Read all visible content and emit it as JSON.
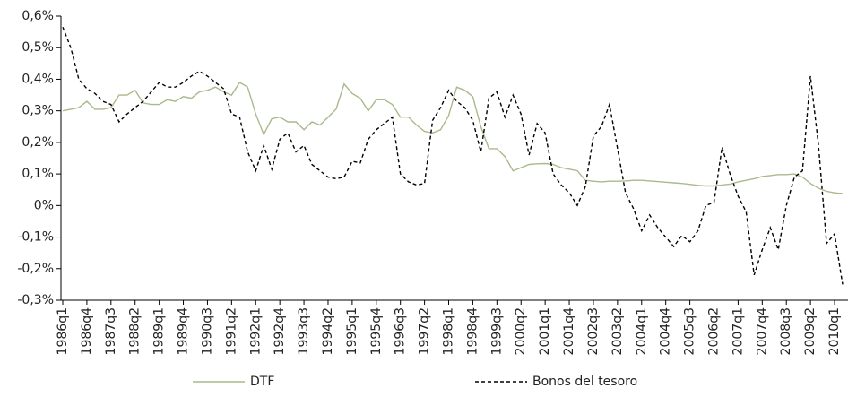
{
  "chart_data": {
    "type": "line",
    "categories": [
      "1986q1",
      null,
      null,
      "1986q4",
      null,
      null,
      "1987q3",
      null,
      null,
      "1988q2",
      null,
      null,
      "1989q1",
      null,
      null,
      "1989q4",
      null,
      null,
      "1990q3",
      null,
      null,
      "1991q2",
      null,
      null,
      "1992q1",
      null,
      null,
      "1992q4",
      null,
      null,
      "1993q3",
      null,
      null,
      "1994q2",
      null,
      null,
      "1995q1",
      null,
      null,
      "1995q4",
      null,
      null,
      "1996q3",
      null,
      null,
      "1997q2",
      null,
      null,
      "1998q1",
      null,
      null,
      "1998q4",
      null,
      null,
      "1999q3",
      null,
      null,
      "2000q2",
      null,
      null,
      "2001q1",
      null,
      null,
      "2001q4",
      null,
      null,
      "2002q3",
      null,
      null,
      "2003q2",
      null,
      null,
      "2004q1",
      null,
      null,
      "2004q4",
      null,
      null,
      "2005q3",
      null,
      null,
      "2006q2",
      null,
      null,
      "2007q1",
      null,
      null,
      "2007q4",
      null,
      null,
      "2008q3",
      null,
      null,
      "2009q2",
      null,
      null,
      "2010q1",
      null
    ],
    "series": [
      {
        "name": "DTF",
        "color": "#a9ba8b",
        "dash": false,
        "values": [
          0.3,
          0.305,
          0.31,
          0.33,
          0.305,
          0.305,
          0.31,
          0.35,
          0.35,
          0.365,
          0.325,
          0.32,
          0.32,
          0.335,
          0.33,
          0.345,
          0.34,
          0.36,
          0.365,
          0.375,
          0.36,
          0.35,
          0.39,
          0.375,
          0.29,
          0.225,
          0.275,
          0.28,
          0.265,
          0.265,
          0.24,
          0.265,
          0.255,
          0.28,
          0.305,
          0.385,
          0.355,
          0.34,
          0.3,
          0.335,
          0.335,
          0.32,
          0.28,
          0.28,
          0.255,
          0.235,
          0.23,
          0.24,
          0.285,
          0.375,
          0.365,
          0.345,
          0.25,
          0.18,
          0.18,
          0.155,
          0.11,
          0.12,
          0.13,
          0.132,
          0.133,
          0.13,
          0.12,
          0.115,
          0.11,
          0.08,
          0.077,
          0.075,
          0.077,
          0.077,
          0.078,
          0.08,
          0.08,
          0.078,
          0.076,
          0.074,
          0.072,
          0.07,
          0.067,
          0.064,
          0.062,
          0.062,
          0.065,
          0.068,
          0.075,
          0.08,
          0.085,
          0.092,
          0.095,
          0.098,
          0.098,
          0.1,
          0.09,
          0.07,
          0.055,
          0.045,
          0.04,
          0.038
        ]
      },
      {
        "name": "Bonos del tesoro",
        "color": "#000000",
        "dash": true,
        "values": [
          0.565,
          0.5,
          0.4,
          0.37,
          0.355,
          0.33,
          0.32,
          0.265,
          0.29,
          0.31,
          0.33,
          0.36,
          0.39,
          0.375,
          0.375,
          0.39,
          0.41,
          0.425,
          0.41,
          0.39,
          0.37,
          0.29,
          0.28,
          0.17,
          0.11,
          0.19,
          0.115,
          0.21,
          0.23,
          0.17,
          0.19,
          0.13,
          0.11,
          0.09,
          0.085,
          0.09,
          0.14,
          0.135,
          0.21,
          0.24,
          0.26,
          0.28,
          0.1,
          0.075,
          0.065,
          0.07,
          0.27,
          0.31,
          0.365,
          0.33,
          0.31,
          0.27,
          0.17,
          0.34,
          0.36,
          0.28,
          0.35,
          0.29,
          0.16,
          0.26,
          0.23,
          0.1,
          0.065,
          0.04,
          0,
          0.06,
          0.22,
          0.25,
          0.32,
          0.18,
          0.04,
          -0.01,
          -0.08,
          -0.03,
          -0.07,
          -0.1,
          -0.13,
          -0.095,
          -0.115,
          -0.08,
          0,
          0.01,
          0.185,
          0.1,
          0.03,
          -0.02,
          -0.22,
          -0.14,
          -0.07,
          -0.14,
          0,
          0.09,
          0.11,
          0.41,
          0.19,
          -0.12,
          -0.09,
          -0.25
        ]
      }
    ],
    "ylim": [
      -0.3,
      0.6
    ],
    "yticks": [
      {
        "value": -0.3,
        "label": "-0,3%"
      },
      {
        "value": -0.2,
        "label": "-0,2%"
      },
      {
        "value": -0.1,
        "label": "-0,1%"
      },
      {
        "value": 0,
        "label": "0%"
      },
      {
        "value": 0.1,
        "label": "0,1%"
      },
      {
        "value": 0.2,
        "label": "0,2%"
      },
      {
        "value": 0.3,
        "label": "0,3%"
      },
      {
        "value": 0.4,
        "label": "0,4%"
      },
      {
        "value": 0.5,
        "label": "0,5%"
      },
      {
        "value": 0.6,
        "label": "0,6%"
      }
    ],
    "legend": "bottom"
  }
}
